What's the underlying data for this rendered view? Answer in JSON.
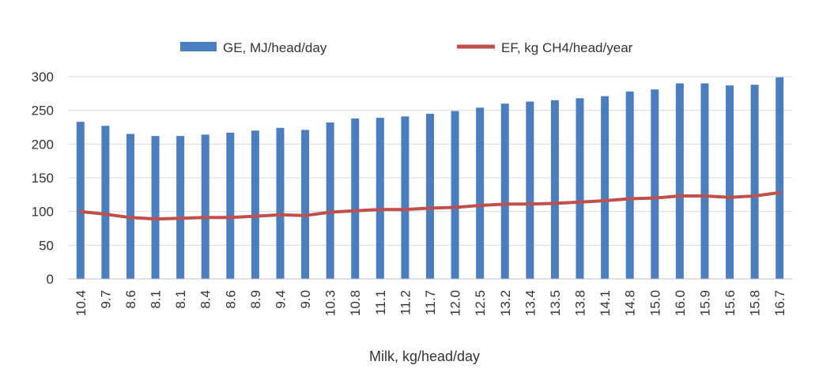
{
  "chart_data": {
    "type": "bar",
    "title": "",
    "xlabel": "Milk, kg/head/day",
    "ylabel": "",
    "ylim": [
      0,
      300
    ],
    "yticks": [
      "0",
      "50",
      "100",
      "150",
      "200",
      "250",
      "300"
    ],
    "grid": true,
    "legend_position": "top",
    "categories": [
      "10.4",
      "9.7",
      "8.6",
      "8.1",
      "8.1",
      "8.4",
      "8.6",
      "8.9",
      "9.4",
      "9.0",
      "10.3",
      "10.8",
      "11.1",
      "11.2",
      "11.7",
      "12.0",
      "12.5",
      "13.2",
      "13.4",
      "13.5",
      "13.8",
      "14.1",
      "14.8",
      "15.0",
      "16.0",
      "15.9",
      "15.6",
      "15.8",
      "16.7"
    ],
    "series": [
      {
        "name": "GE, MJ/head/day",
        "type": "bar",
        "color": "#4a7ebf",
        "values": [
          233,
          227,
          215,
          212,
          212,
          214,
          217,
          220,
          224,
          221,
          232,
          238,
          239,
          241,
          245,
          249,
          254,
          260,
          263,
          265,
          268,
          271,
          278,
          281,
          290,
          290,
          287,
          288,
          299
        ]
      },
      {
        "name": "EF, kg CH4/head/year",
        "type": "line",
        "color": "#c0504d",
        "values": [
          100,
          96,
          91,
          89,
          90,
          91,
          91,
          93,
          95,
          94,
          99,
          101,
          103,
          103,
          105,
          106,
          109,
          111,
          111,
          112,
          114,
          116,
          119,
          120,
          123,
          123,
          121,
          123,
          128
        ]
      }
    ]
  }
}
